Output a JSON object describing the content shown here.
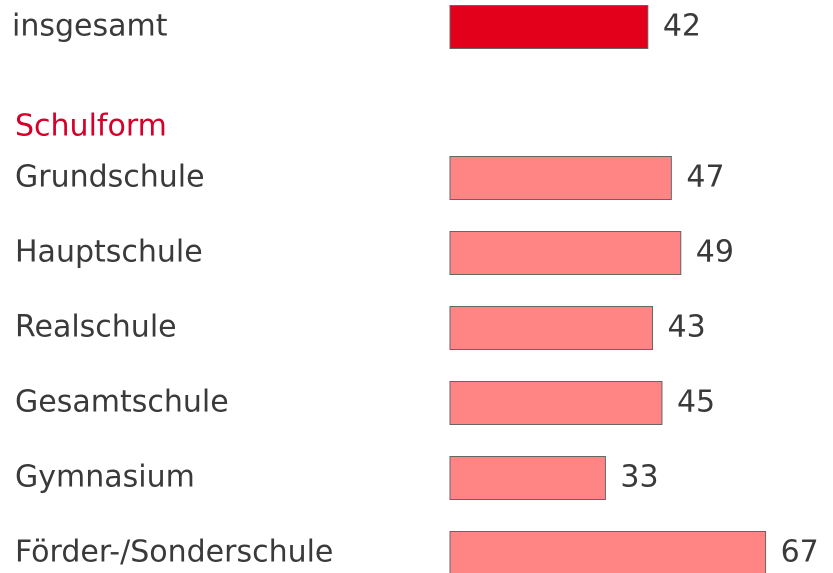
{
  "chart_data": {
    "type": "bar",
    "orientation": "horizontal",
    "categories": [
      "insgesamt",
      "Grundschule",
      "Hauptschule",
      "Realschule",
      "Gesamtschule",
      "Gymnasium",
      "Förder-/Sonderschule"
    ],
    "values": [
      42,
      47,
      49,
      43,
      45,
      33,
      67
    ],
    "colors": [
      "#e2001a",
      "#ff8585",
      "#ff8585",
      "#ff8585",
      "#ff8585",
      "#ff8585",
      "#ff8585"
    ],
    "group_label": "Schulform",
    "group_label_color": "#d4002a"
  }
}
